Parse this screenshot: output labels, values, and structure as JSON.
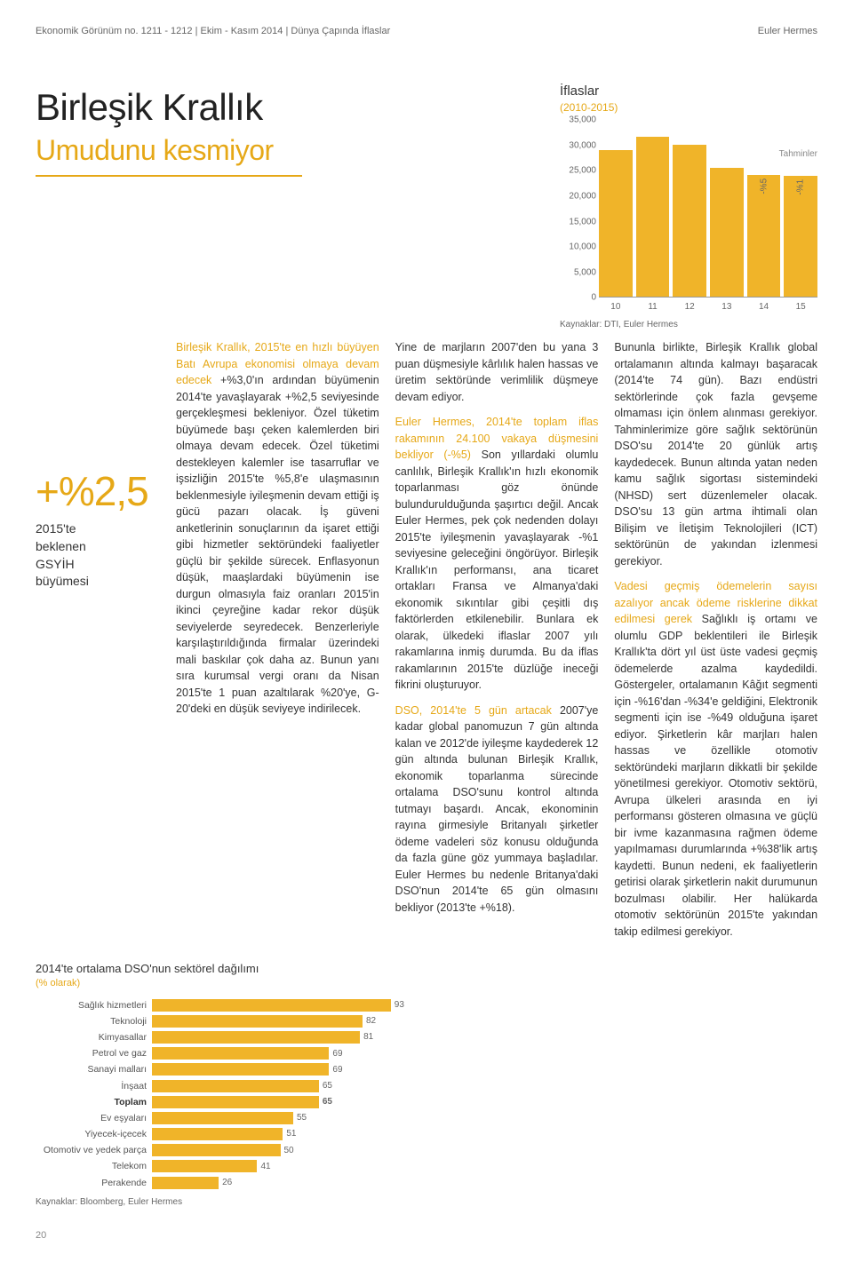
{
  "header": {
    "left": "Ekonomik Görünüm no. 1211 - 1212 | Ekim - Kasım 2014 | Dünya Çapında İflaslar",
    "right": "Euler Hermes"
  },
  "title": {
    "main": "Birleşik Krallık",
    "sub": "Umudunu kesmiyor",
    "underline_color": "#e6a817"
  },
  "stat": {
    "value": "+%2,5",
    "lines": [
      "2015'te",
      "beklenen",
      "GSYİH",
      "büyümesi"
    ]
  },
  "intro_lead": "Birleşik Krallık, 2015'te en hızlı büyüyen Batı Avrupa ekonomisi olmaya devam edecek",
  "intro_rest": " +%3,0'ın ardından büyümenin 2014'te yavaşlayarak +%2,5 seviyesinde gerçekleşmesi bekleniyor. Özel tüketim büyümede başı çeken kalemlerden biri olmaya devam edecek. Özel tüketimi destekleyen kalemler ise tasarruflar ve işsizliğin 2015'te %5,8'e ulaşmasının beklenmesiyle iyileşmenin devam ettiği iş gücü pazarı olacak. İş güveni anketlerinin sonuçlarının da işaret ettiği gibi hizmetler sektöründeki faaliyetler güçlü bir şekilde sürecek. Enflasyonun düşük, maaşlardaki büyümenin ise durgun olmasıyla faiz oranları 2015'in ikinci çeyreğine kadar rekor düşük seviyelerde seyredecek. Benzerleriyle karşılaştırıldığında firmalar üzerindeki mali baskılar çok daha az. Bunun yanı sıra kurumsal vergi oranı da Nisan 2015'te 1 puan azaltılarak %20'ye, G-20'deki en düşük seviyeye indirilecek.",
  "col2_top": "Yine de marjların 2007'den bu yana 3 puan düşmesiyle kârlılık halen hassas ve üretim sektöründe verimlilik düşmeye devam ediyor.",
  "col2_lead": "Euler Hermes, 2014'te toplam iflas rakamının 24.100 vakaya düşmesini bekliyor (-%5)",
  "col2_rest": " Son yıllardaki olumlu canlılık, Birleşik Krallık'ın hızlı ekonomik toparlanması göz önünde bulundurulduğunda şaşırtıcı değil. Ancak Euler Hermes, pek çok nedenden dolayı 2015'te iyileşmenin yavaşlayarak -%1 seviyesine geleceğini öngörüyor. Birleşik Krallık'ın performansı, ana ticaret ortakları Fransa ve Almanya'daki ekonomik sıkıntılar gibi çeşitli dış faktörlerden etkilenebilir. Bunlara ek olarak, ülkedeki iflaslar 2007 yılı rakamlarına inmiş durumda. Bu da iflas rakamlarının 2015'te düzlüğe ineceği fikrini oluşturuyor.",
  "col2_lead2": "DSO, 2014'te 5 gün artacak",
  "col2_rest2": " 2007'ye kadar global panomuzun 7 gün altında kalan ve 2012'de iyileşme kaydederek 12 gün altında bulunan Birleşik Krallık, ekonomik toparlanma sürecinde ortalama DSO'sunu kontrol altında tutmayı başardı. Ancak, ekonominin rayına girmesiyle Britanyalı şirketler ödeme vadeleri söz konusu olduğunda da fazla güne göz yummaya başladılar. Euler Hermes bu nedenle Britanya'daki DSO'nun 2014'te 65 gün olmasını bekliyor (2013'te +%18).",
  "col3_top": "Bununla birlikte, Birleşik Krallık global ortalamanın altında kalmayı başaracak (2014'te 74 gün). Bazı endüstri sektörlerinde çok fazla gevşeme olmaması için önlem alınması gerekiyor. Tahminlerimize göre sağlık sektörünün DSO'su 2014'te 20 günlük artış kaydedecek. Bunun altında yatan neden kamu sağlık sigortası sistemindeki (NHSD) sert düzenlemeler olacak. DSO'su 13 gün artma ihtimali olan Bilişim ve İletişim Teknolojileri (ICT) sektörünün de yakından izlenmesi gerekiyor.",
  "col3_lead": "Vadesi geçmiş ödemelerin sayısı azalıyor ancak ödeme risklerine dikkat edilmesi gerek",
  "col3_rest": " Sağlıklı iş ortamı ve olumlu GDP beklentileri ile Birleşik Krallık'ta dört yıl üst üste vadesi geçmiş ödemelerde azalma kaydedildi. Göstergeler, ortalamanın Kâğıt segmenti için -%16'dan -%34'e geldiğini, Elektronik segmenti için ise -%49 olduğuna işaret ediyor. Şirketlerin kâr marjları halen hassas ve özellikle otomotiv sektöründeki marjların dikkatli bir şekilde yönetilmesi gerekiyor. Otomotiv sektörü, Avrupa ülkeleri arasında en iyi performansı gösteren olmasına ve güçlü bir ivme kazanmasına rağmen ödeme yapılmaması durumlarında +%38'lik artış kaydetti. Bunun nedeni, ek faaliyetlerin getirisi olarak şirketlerin nakit durumunun bozulması olabilir. Her halükarda otomotiv sektörünün 2015'te yakından takip edilmesi gerekiyor.",
  "bar_chart": {
    "title": "İflaslar",
    "subtitle": "(2010-2015)",
    "tahmin_label": "Tahminler",
    "ymax": 35000,
    "ymin": 0,
    "ytick_step": 5000,
    "yticks": [
      "35,000",
      "30,000",
      "25,000",
      "20,000",
      "15,000",
      "10,000",
      "5,000",
      "0"
    ],
    "categories": [
      "10",
      "11",
      "12",
      "13",
      "14",
      "15"
    ],
    "values": [
      29000,
      31500,
      30000,
      25500,
      24100,
      23900
    ],
    "value_colors": [
      "#f0b429",
      "#f0b429",
      "#f0b429",
      "#f0b429",
      "#f0b429",
      "#f0b429"
    ],
    "bar_annotations": [
      "",
      "",
      "",
      "",
      "-%5",
      "-%1"
    ],
    "source": "Kaynaklar: DTI, Euler Hermes",
    "background_color": "#ffffff"
  },
  "hbar_chart": {
    "title": "2014'te ortalama DSO'nun sektörel dağılımı",
    "subtitle": "(% olarak)",
    "max": 100,
    "rows": [
      {
        "label": "Sağlık hizmetleri",
        "value": 93,
        "bold": false
      },
      {
        "label": "Teknoloji",
        "value": 82,
        "bold": false
      },
      {
        "label": "Kimyasallar",
        "value": 81,
        "bold": false
      },
      {
        "label": "Petrol ve gaz",
        "value": 69,
        "bold": false
      },
      {
        "label": "Sanayi malları",
        "value": 69,
        "bold": false
      },
      {
        "label": "İnşaat",
        "value": 65,
        "bold": false
      },
      {
        "label": "Toplam",
        "value": 65,
        "bold": true
      },
      {
        "label": "Ev eşyaları",
        "value": 55,
        "bold": false
      },
      {
        "label": "Yiyecek-içecek",
        "value": 51,
        "bold": false
      },
      {
        "label": "Otomotiv ve yedek parça",
        "value": 50,
        "bold": false
      },
      {
        "label": "Telekom",
        "value": 41,
        "bold": false
      },
      {
        "label": "Perakende",
        "value": 26,
        "bold": false
      }
    ],
    "bar_color": "#f0b429",
    "source": "Kaynaklar: Bloomberg, Euler Hermes"
  },
  "page_number": "20"
}
